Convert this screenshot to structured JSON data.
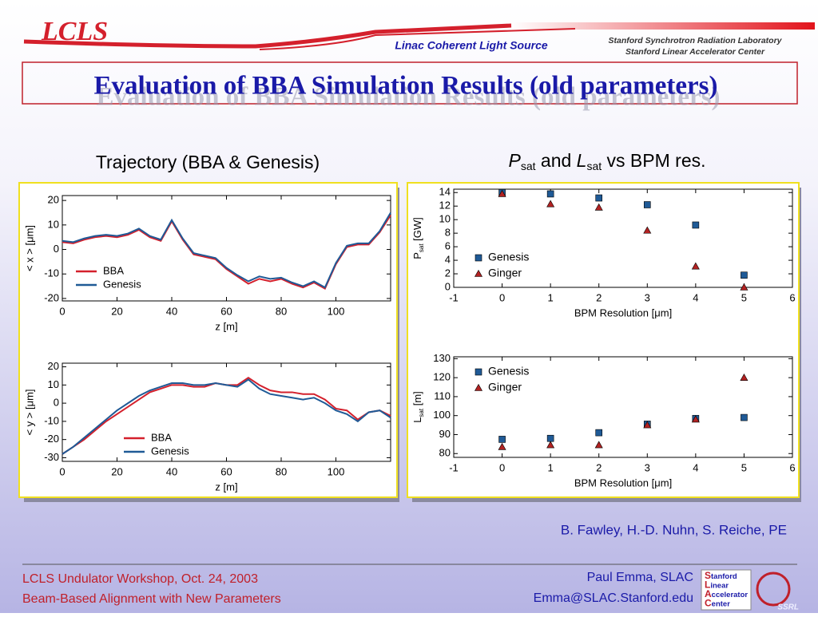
{
  "header": {
    "logo": "LCLS",
    "program": "Linac Coherent Light Source",
    "lab1": "Stanford Synchrotron Radiation Laboratory",
    "lab2": "Stanford Linear Accelerator Center"
  },
  "title": "Evaluation of BBA Simulation Results (old parameters)",
  "left_heading": "Trajectory (BBA & Genesis)",
  "right_heading": {
    "p": "P",
    "p_sub": "sat",
    "and": "and",
    "l": "L",
    "l_sub": "sat",
    "rest": "vs BPM res."
  },
  "authors": "B. Fawley, H.-D. Nuhn, S. Reiche, PE",
  "footer": {
    "line1": "LCLS Undulator Workshop, Oct. 24, 2003",
    "line2": "Beam-Based Alignment with New Parameters",
    "speaker": "Paul Emma, SLAC",
    "email": "Emma@SLAC.Stanford.edu",
    "slac": [
      "tanford",
      "inear",
      "ccelerator",
      "enter"
    ],
    "slac_initials": [
      "S",
      "L",
      "A",
      "C"
    ],
    "ssrl": "SSRL"
  },
  "chart_data": [
    {
      "type": "line",
      "xlabel": "z [m]",
      "ylabel": "< x > [μm]",
      "x": [
        0,
        4,
        8,
        12,
        16,
        20,
        24,
        28,
        32,
        36,
        40,
        44,
        48,
        52,
        56,
        60,
        64,
        68,
        72,
        76,
        80,
        84,
        88,
        92,
        96,
        100,
        104,
        108,
        112,
        116,
        120
      ],
      "xlim": [
        0,
        120
      ],
      "ylim": [
        -21,
        22
      ],
      "xticks": [
        0,
        20,
        40,
        60,
        80,
        100
      ],
      "yticks": [
        -20,
        -10,
        0,
        10,
        20
      ],
      "series": [
        {
          "name": "BBA",
          "color": "#d4202c",
          "values": [
            3,
            2.5,
            4,
            5,
            5.5,
            5,
            6,
            8,
            5,
            3.5,
            11.5,
            4,
            -2,
            -3,
            -4,
            -8,
            -11,
            -14,
            -12,
            -13,
            -12,
            -14,
            -15.5,
            -13.5,
            -16,
            -6,
            1,
            2,
            2,
            7,
            14
          ]
        },
        {
          "name": "Genesis",
          "color": "#1f5a96",
          "values": [
            3.5,
            3,
            4.5,
            5.5,
            6,
            5.5,
            6.5,
            8.5,
            5.5,
            4,
            12,
            4.5,
            -1.5,
            -2.5,
            -3.5,
            -7.5,
            -10.5,
            -13,
            -11,
            -12,
            -11.5,
            -13.5,
            -15,
            -13,
            -15.5,
            -5.5,
            1.5,
            2.5,
            2.5,
            7.5,
            15
          ]
        }
      ]
    },
    {
      "type": "line",
      "xlabel": "z [m]",
      "ylabel": "< y > [μm]",
      "x": [
        0,
        4,
        8,
        12,
        16,
        20,
        24,
        28,
        32,
        36,
        40,
        44,
        48,
        52,
        56,
        60,
        64,
        68,
        72,
        76,
        80,
        84,
        88,
        92,
        96,
        100,
        104,
        108,
        112,
        116,
        120
      ],
      "xlim": [
        0,
        120
      ],
      "ylim": [
        -32,
        22
      ],
      "xticks": [
        0,
        20,
        40,
        60,
        80,
        100
      ],
      "yticks": [
        -30,
        -20,
        -10,
        0,
        10,
        20
      ],
      "series": [
        {
          "name": "BBA",
          "color": "#d4202c",
          "values": [
            -28,
            -24,
            -20,
            -15,
            -10,
            -6,
            -2,
            2,
            6,
            8,
            10,
            10,
            9,
            9,
            11,
            10,
            10,
            14,
            10,
            7,
            6,
            6,
            5,
            5,
            2,
            -3,
            -4,
            -9,
            -5,
            -4,
            -7
          ]
        },
        {
          "name": "Genesis",
          "color": "#1f5a96",
          "values": [
            -28,
            -24,
            -19,
            -14,
            -9,
            -4,
            0,
            4,
            7,
            9,
            11,
            11,
            10,
            10,
            11,
            10,
            9,
            13,
            8,
            5,
            4,
            3,
            2,
            3,
            0,
            -4,
            -6,
            -10,
            -5,
            -4,
            -8
          ]
        }
      ]
    },
    {
      "type": "scatter",
      "xlabel": "BPM Resolution [μm]",
      "ylabel": {
        "symbol": "P",
        "sub": "sat",
        "unit": "[GW]"
      },
      "x": [
        0,
        1,
        2,
        3,
        4,
        5
      ],
      "xlim": [
        -1,
        6
      ],
      "ylim": [
        0,
        14.5
      ],
      "xticks": [
        -1,
        0,
        1,
        2,
        3,
        4,
        5,
        6
      ],
      "yticks": [
        0,
        2,
        4,
        6,
        8,
        10,
        12,
        14
      ],
      "series": [
        {
          "name": "Genesis",
          "color": "#1f5a96",
          "marker": "square",
          "values": [
            14,
            13.8,
            13.2,
            12.2,
            9.2,
            1.8
          ]
        },
        {
          "name": "Ginger",
          "color": "#b22222",
          "marker": "triangle",
          "values": [
            13.8,
            12.3,
            11.8,
            8.4,
            3.1,
            0
          ]
        }
      ]
    },
    {
      "type": "scatter",
      "xlabel": "BPM Resolution [μm]",
      "ylabel": {
        "symbol": "L",
        "sub": "sat",
        "unit": "[m]"
      },
      "x": [
        0,
        1,
        2,
        3,
        4,
        5
      ],
      "xlim": [
        -1,
        6
      ],
      "ylim": [
        78,
        131
      ],
      "xticks": [
        -1,
        0,
        1,
        2,
        3,
        4,
        5,
        6
      ],
      "yticks": [
        80,
        90,
        100,
        110,
        120,
        130
      ],
      "series": [
        {
          "name": "Genesis",
          "color": "#1f5a96",
          "marker": "square",
          "values": [
            87.5,
            88,
            91,
            95.5,
            98.5,
            99
          ]
        },
        {
          "name": "Ginger",
          "color": "#b22222",
          "marker": "triangle",
          "values": [
            83.5,
            84.5,
            84.5,
            95,
            98,
            120
          ]
        }
      ]
    }
  ]
}
